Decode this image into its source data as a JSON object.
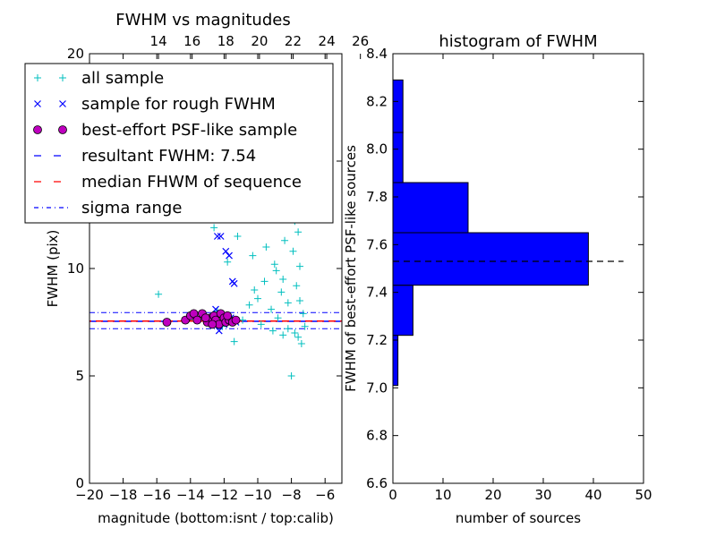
{
  "chart_data": [
    {
      "type": "scatter",
      "title": "FWHM vs magnitudes",
      "xlabel": "magnitude (bottom:isnt / top:calib)",
      "ylabel": "FWHM (pix)",
      "xlim": [
        -20,
        -5
      ],
      "ylim": [
        0,
        20
      ],
      "x_ticks": [
        "−20",
        "−18",
        "−16",
        "−14",
        "−12",
        "−10",
        "−8",
        "−6"
      ],
      "x_tick_values": [
        -20,
        -18,
        -16,
        -14,
        -12,
        -10,
        -8,
        -6
      ],
      "top_ticks": [
        "14",
        "16",
        "18",
        "20",
        "22",
        "24",
        "26"
      ],
      "top_tick_values": [
        -15.9,
        -13.9,
        -11.9,
        -9.9,
        -7.9,
        -5.9,
        -3.9
      ],
      "y_ticks": [
        "0",
        "5",
        "10",
        "15",
        "20"
      ],
      "y_tick_values": [
        0,
        5,
        10,
        15,
        20
      ],
      "legend": [
        {
          "label": "all sample",
          "marker": "plus",
          "color": "#00bfbf"
        },
        {
          "label": "sample for rough FWHM",
          "marker": "x",
          "color": "#0000ff"
        },
        {
          "label": "best-effort PSF-like sample",
          "marker": "circle",
          "color": "#bf00bf"
        },
        {
          "label": "resultant FWHM: 7.54",
          "marker": "dashed",
          "color": "#0000ff"
        },
        {
          "label": "median FHWM of sequence",
          "marker": "dashed",
          "color": "#ff0000"
        },
        {
          "label": "sigma range",
          "marker": "dashdot",
          "color": "#0000ff"
        }
      ],
      "legend_position": "upper-left",
      "resultant_fwhm": 7.54,
      "median_fwhm": 7.55,
      "sigma_range": [
        7.2,
        7.95
      ],
      "series": [
        {
          "name": "all sample",
          "color": "#00bfbf",
          "points": [
            [
              -15.9,
              8.8
            ],
            [
              -12.6,
              11.9
            ],
            [
              -11.8,
              10.3
            ],
            [
              -11.4,
              6.6
            ],
            [
              -10.9,
              7.6
            ],
            [
              -10.5,
              8.3
            ],
            [
              -10.2,
              9.0
            ],
            [
              -9.8,
              7.4
            ],
            [
              -9.5,
              11.0
            ],
            [
              -9.2,
              8.1
            ],
            [
              -9.0,
              10.2
            ],
            [
              -8.8,
              7.7
            ],
            [
              -8.6,
              12.6
            ],
            [
              -8.5,
              9.5
            ],
            [
              -8.3,
              14.5
            ],
            [
              -8.2,
              8.4
            ],
            [
              -8.1,
              19.2
            ],
            [
              -8.0,
              13.0
            ],
            [
              -7.9,
              10.8
            ],
            [
              -7.8,
              7.0
            ],
            [
              -7.7,
              9.2
            ],
            [
              -7.6,
              11.7
            ],
            [
              -7.5,
              8.5
            ],
            [
              -7.4,
              6.5
            ],
            [
              -7.3,
              7.9
            ],
            [
              -7.2,
              7.3
            ],
            [
              -8.0,
              5.0
            ],
            [
              -8.7,
              15.8
            ],
            [
              -9.3,
              12.4
            ],
            [
              -10.0,
              8.6
            ],
            [
              -8.4,
              11.3
            ],
            [
              -7.8,
              12.2
            ],
            [
              -8.9,
              9.9
            ],
            [
              -9.6,
              9.4
            ],
            [
              -10.6,
              13.7
            ],
            [
              -11.0,
              12.9
            ],
            [
              -12.1,
              7.3
            ],
            [
              -12.4,
              8.0
            ],
            [
              -7.6,
              6.8
            ],
            [
              -8.2,
              7.2
            ],
            [
              -8.5,
              6.9
            ],
            [
              -9.1,
              7.1
            ],
            [
              -10.3,
              10.6
            ],
            [
              -7.7,
              13.6
            ],
            [
              -8.3,
              16.8
            ],
            [
              -8.0,
              17.5
            ],
            [
              -7.5,
              10.1
            ],
            [
              -8.6,
              8.9
            ],
            [
              -9.4,
              13.3
            ],
            [
              -11.2,
              11.5
            ]
          ]
        },
        {
          "name": "sample for rough FWHM",
          "color": "#0000ff",
          "points": [
            [
              -12.4,
              11.5
            ],
            [
              -12.2,
              11.5
            ],
            [
              -11.9,
              10.8
            ],
            [
              -11.7,
              10.6
            ],
            [
              -11.5,
              9.4
            ],
            [
              -11.4,
              9.3
            ],
            [
              -12.5,
              8.1
            ],
            [
              -12.3,
              7.1
            ],
            [
              -12.8,
              7.6
            ],
            [
              -12.0,
              7.4
            ],
            [
              -11.6,
              7.7
            ],
            [
              -11.3,
              7.5
            ]
          ]
        },
        {
          "name": "best-effort PSF-like sample",
          "color": "#bf00bf",
          "points": [
            [
              -15.4,
              7.5
            ],
            [
              -14.3,
              7.6
            ],
            [
              -14.0,
              7.8
            ],
            [
              -13.8,
              7.9
            ],
            [
              -13.6,
              7.6
            ],
            [
              -13.3,
              7.9
            ],
            [
              -13.0,
              7.5
            ],
            [
              -12.8,
              7.7
            ],
            [
              -12.6,
              7.8
            ],
            [
              -12.5,
              7.6
            ],
            [
              -12.3,
              7.4
            ],
            [
              -12.2,
              7.9
            ],
            [
              -12.0,
              7.7
            ],
            [
              -11.9,
              7.5
            ],
            [
              -11.7,
              7.6
            ],
            [
              -11.5,
              7.5
            ],
            [
              -11.3,
              7.6
            ],
            [
              -12.7,
              7.4
            ],
            [
              -13.1,
              7.7
            ],
            [
              -11.8,
              7.8
            ]
          ]
        }
      ]
    },
    {
      "type": "bar",
      "orientation": "horizontal",
      "title": "histogram of FWHM",
      "xlabel": "number of sources",
      "ylabel": "FWHM of best-effort PSF-like sources",
      "xlim": [
        0,
        50
      ],
      "ylim": [
        6.6,
        8.4
      ],
      "x_ticks": [
        "0",
        "10",
        "20",
        "30",
        "40",
        "50"
      ],
      "x_tick_values": [
        0,
        10,
        20,
        30,
        40,
        50
      ],
      "y_ticks": [
        "6.6",
        "6.8",
        "7.0",
        "7.2",
        "7.4",
        "7.6",
        "7.8",
        "8.0",
        "8.2",
        "8.4"
      ],
      "y_tick_values": [
        6.6,
        6.8,
        7.0,
        7.2,
        7.4,
        7.6,
        7.8,
        8.0,
        8.2,
        8.4
      ],
      "bar_color": "#0000ff",
      "bins": [
        {
          "from": 7.01,
          "to": 7.22,
          "count": 1
        },
        {
          "from": 7.22,
          "to": 7.43,
          "count": 4
        },
        {
          "from": 7.43,
          "to": 7.65,
          "count": 39
        },
        {
          "from": 7.65,
          "to": 7.86,
          "count": 15
        },
        {
          "from": 7.86,
          "to": 8.07,
          "count": 2
        },
        {
          "from": 8.07,
          "to": 8.29,
          "count": 2
        }
      ],
      "reference_line": 7.53
    }
  ]
}
